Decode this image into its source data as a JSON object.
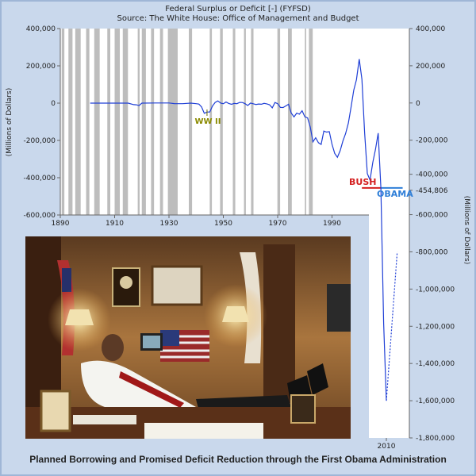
{
  "chart_data": {
    "type": "line",
    "title": "Federal Surplus or Deficit [-] (FYFSD)",
    "subtitle": "Source: The White House: Office of Management and Budget",
    "ylabel_left": "(Millions of Dollars)",
    "ylabel_right": "(Millions of Dollars)",
    "x_ticks": [
      "1890",
      "1910",
      "1930",
      "1950",
      "1970",
      "1990",
      "2010"
    ],
    "y_ticks_left": [
      "400,000",
      "200,000",
      "0",
      "-200,000",
      "-400,000",
      "-600,000"
    ],
    "y_ticks_right": [
      "400,000",
      "200,000",
      "0",
      "-200,000",
      "-400,000",
      "-454,806",
      "-600,000",
      "-800,000",
      "-1,000,000",
      "-1,200,000",
      "-1,400,000",
      "-1,600,000",
      "-1,800,000"
    ],
    "annotations": {
      "ww2": "WW II",
      "bush": "BUSH",
      "obama": "OBAMA"
    },
    "series": [
      {
        "style": "solid",
        "color": "#1f3fd6",
        "points": [
          [
            1901,
            0
          ],
          [
            1905,
            0
          ],
          [
            1910,
            0
          ],
          [
            1915,
            0
          ],
          [
            1917,
            -8000
          ],
          [
            1918,
            -9000
          ],
          [
            1919,
            -13000
          ],
          [
            1920,
            0
          ],
          [
            1925,
            1000
          ],
          [
            1930,
            700
          ],
          [
            1932,
            -2700
          ],
          [
            1935,
            -2800
          ],
          [
            1938,
            -100
          ],
          [
            1940,
            -3000
          ],
          [
            1941,
            -5000
          ],
          [
            1942,
            -20500
          ],
          [
            1943,
            -54500
          ],
          [
            1944,
            -47600
          ],
          [
            1945,
            -47500
          ],
          [
            1946,
            -15900
          ],
          [
            1947,
            4000
          ],
          [
            1948,
            11800
          ],
          [
            1949,
            600
          ],
          [
            1950,
            -3100
          ],
          [
            1951,
            6100
          ],
          [
            1952,
            -1500
          ],
          [
            1953,
            -6500
          ],
          [
            1954,
            -1200
          ],
          [
            1955,
            -3000
          ],
          [
            1956,
            3900
          ],
          [
            1957,
            3400
          ],
          [
            1958,
            -2800
          ],
          [
            1959,
            -12800
          ],
          [
            1960,
            300
          ],
          [
            1961,
            -3300
          ],
          [
            1962,
            -7100
          ],
          [
            1963,
            -4800
          ],
          [
            1964,
            -5900
          ],
          [
            1965,
            -1400
          ],
          [
            1966,
            -3700
          ],
          [
            1967,
            -8600
          ],
          [
            1968,
            -25200
          ],
          [
            1969,
            3200
          ],
          [
            1970,
            -2800
          ],
          [
            1971,
            -23000
          ],
          [
            1972,
            -23400
          ],
          [
            1973,
            -14900
          ],
          [
            1974,
            -6100
          ],
          [
            1975,
            -53200
          ],
          [
            1976,
            -73700
          ],
          [
            1977,
            -53700
          ],
          [
            1978,
            -59200
          ],
          [
            1979,
            -40700
          ],
          [
            1980,
            -73800
          ],
          [
            1981,
            -79000
          ],
          [
            1982,
            -128000
          ],
          [
            1983,
            -207800
          ],
          [
            1984,
            -185400
          ],
          [
            1985,
            -212300
          ],
          [
            1986,
            -221200
          ],
          [
            1987,
            -149700
          ],
          [
            1988,
            -155200
          ],
          [
            1989,
            -152600
          ],
          [
            1990,
            -221000
          ],
          [
            1991,
            -269200
          ],
          [
            1992,
            -290300
          ],
          [
            1993,
            -255100
          ],
          [
            1994,
            -203200
          ],
          [
            1995,
            -164000
          ],
          [
            1996,
            -107400
          ],
          [
            1997,
            -21900
          ],
          [
            1998,
            69300
          ],
          [
            1999,
            125600
          ],
          [
            2000,
            236200
          ],
          [
            2001,
            128200
          ],
          [
            2002,
            -157800
          ],
          [
            2003,
            -377600
          ],
          [
            2004,
            -412700
          ],
          [
            2005,
            -318300
          ],
          [
            2006,
            -248200
          ],
          [
            2007,
            -160700
          ],
          [
            2008,
            -454806
          ],
          [
            2009,
            -1186000
          ],
          [
            2010,
            -1600000
          ]
        ]
      },
      {
        "style": "dashed",
        "color": "#1f3fd6",
        "points": [
          [
            2010,
            -1600000
          ],
          [
            2014,
            -800000
          ]
        ]
      }
    ],
    "ww2_marker_year": 1944,
    "bush_line": {
      "value": -454806,
      "x_from": 2001,
      "x_to": 2008,
      "color": "#d42020"
    },
    "obama_line": {
      "value": -454806,
      "x_from": 2008,
      "x_to": 2016,
      "color": "#2f7fd8"
    },
    "recession_bands": [
      [
        1890.5,
        1891.5
      ],
      [
        1893,
        1894.5
      ],
      [
        1895.5,
        1897.5
      ],
      [
        1899.5,
        1900.7
      ],
      [
        1902.5,
        1904.5
      ],
      [
        1907.3,
        1908.4
      ],
      [
        1910,
        1911.9
      ],
      [
        1913,
        1914.9
      ],
      [
        1918.5,
        1919.2
      ],
      [
        1920,
        1921.5
      ],
      [
        1923.4,
        1924.5
      ],
      [
        1926.7,
        1927.8
      ],
      [
        1929.6,
        1933.2
      ],
      [
        1937.3,
        1938.5
      ],
      [
        1945,
        1945.8
      ],
      [
        1948.8,
        1949.8
      ],
      [
        1953.5,
        1954.4
      ],
      [
        1957.6,
        1958.3
      ],
      [
        1960.2,
        1961.1
      ],
      [
        1969.9,
        1970.9
      ],
      [
        1973.8,
        1975.2
      ],
      [
        1980,
        1980.5
      ],
      [
        1981.5,
        1982.9
      ]
    ],
    "left_axis": {
      "ymin": -600000,
      "ymax": 400000,
      "xmin": 1890,
      "xmax": 2010
    },
    "right_axis": {
      "ymin": -1800000,
      "ymax": 400000
    },
    "grid": false
  },
  "caption": "Planned Borrowing and Promised Deficit Reduction through the First Obama Administration",
  "photo": {
    "desc_icon": "office-photo-icon"
  },
  "colors": {
    "background": "#c9d8ec",
    "border": "#9fb6d6",
    "plot": "#ffffff",
    "band": "#bdbdbd"
  }
}
